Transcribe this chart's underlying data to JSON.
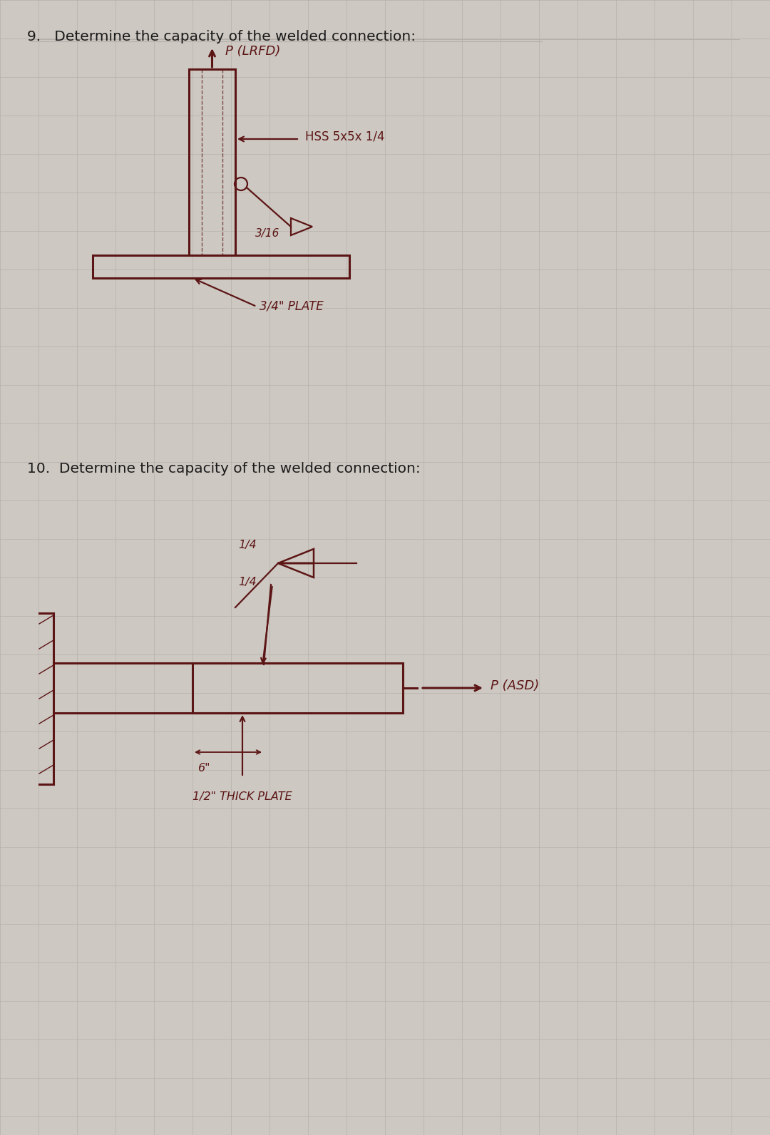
{
  "bg_color": "#cdc8c2",
  "draw_color": "#5c1515",
  "text_color_dark": "#1a1a1a",
  "grid_color": "#b5b0aa",
  "title9": "9.   Determine the capacity of the welded connection:",
  "title10": "10.  Determine the capacity of the welded connection:",
  "label_hss": "HSS 5x5x 1/4",
  "label_weld9": "3/16",
  "label_plate9": "3/4\" PLATE",
  "label_force9": "P (LRFD)",
  "label_weld10_top": "1/4",
  "label_weld10_bot": "1/4",
  "label_dim10": "6\"",
  "label_plate10": "1/2\" THICK PLATE",
  "label_force10": "P (ASD)"
}
